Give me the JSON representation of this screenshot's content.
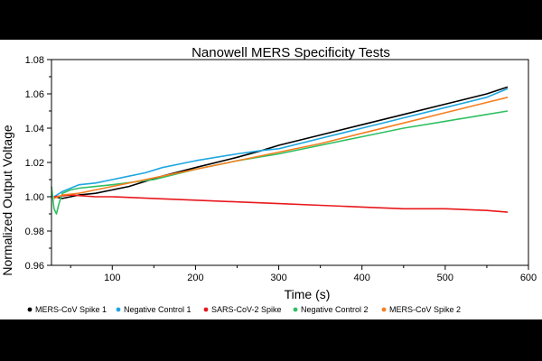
{
  "chart_data": {
    "type": "line",
    "title": "Nanowell MERS Specificity Tests",
    "xlabel": "Time (s)",
    "ylabel": "Normalized Output Voltage",
    "xlim": [
      27,
      600
    ],
    "ylim": [
      0.96,
      1.08
    ],
    "xticks": [
      100,
      200,
      300,
      400,
      500,
      600
    ],
    "yticks": [
      0.96,
      0.98,
      1.0,
      1.02,
      1.04,
      1.06,
      1.08
    ],
    "grid": false,
    "legend_position": "bottom",
    "series": [
      {
        "name": "MERS-CoV Spike 1",
        "color": "#000000",
        "x": [
          30,
          40,
          60,
          80,
          100,
          120,
          140,
          160,
          200,
          250,
          280,
          300,
          350,
          400,
          450,
          500,
          550,
          575
        ],
        "y": [
          1.0,
          0.999,
          1.001,
          1.002,
          1.004,
          1.006,
          1.009,
          1.012,
          1.017,
          1.023,
          1.027,
          1.03,
          1.036,
          1.042,
          1.048,
          1.054,
          1.06,
          1.064
        ]
      },
      {
        "name": "Negative Control 1",
        "color": "#1ea7e1",
        "x": [
          30,
          40,
          50,
          60,
          80,
          100,
          120,
          140,
          160,
          200,
          250,
          280,
          300,
          350,
          400,
          450,
          500,
          550,
          575
        ],
        "y": [
          1.0,
          1.003,
          1.005,
          1.007,
          1.008,
          1.01,
          1.012,
          1.014,
          1.017,
          1.021,
          1.025,
          1.027,
          1.028,
          1.034,
          1.04,
          1.046,
          1.052,
          1.058,
          1.063
        ]
      },
      {
        "name": "SARS-CoV-2 Spike",
        "color": "#e8181b",
        "x": [
          30,
          50,
          80,
          100,
          150,
          200,
          250,
          300,
          350,
          400,
          450,
          500,
          550,
          575
        ],
        "y": [
          1.0,
          1.001,
          1.0,
          1.0,
          0.999,
          0.998,
          0.997,
          0.996,
          0.995,
          0.994,
          0.993,
          0.993,
          0.992,
          0.991
        ]
      },
      {
        "name": "Negative Control 2",
        "color": "#2fbf62",
        "x": [
          27,
          30,
          33,
          36,
          40,
          50,
          60,
          80,
          100,
          150,
          200,
          250,
          300,
          350,
          400,
          450,
          500,
          550,
          575
        ],
        "y": [
          1.006,
          0.993,
          0.99,
          0.996,
          1.002,
          1.004,
          1.005,
          1.006,
          1.007,
          1.01,
          1.016,
          1.021,
          1.025,
          1.03,
          1.035,
          1.04,
          1.044,
          1.048,
          1.05
        ]
      },
      {
        "name": "MERS-CoV Spike 2",
        "color": "#f57f20",
        "x": [
          30,
          40,
          60,
          80,
          100,
          120,
          140,
          160,
          200,
          250,
          300,
          350,
          400,
          450,
          500,
          550,
          575
        ],
        "y": [
          0.999,
          1.001,
          1.002,
          1.004,
          1.006,
          1.008,
          1.01,
          1.012,
          1.016,
          1.021,
          1.026,
          1.031,
          1.037,
          1.043,
          1.049,
          1.055,
          1.058
        ]
      }
    ]
  }
}
